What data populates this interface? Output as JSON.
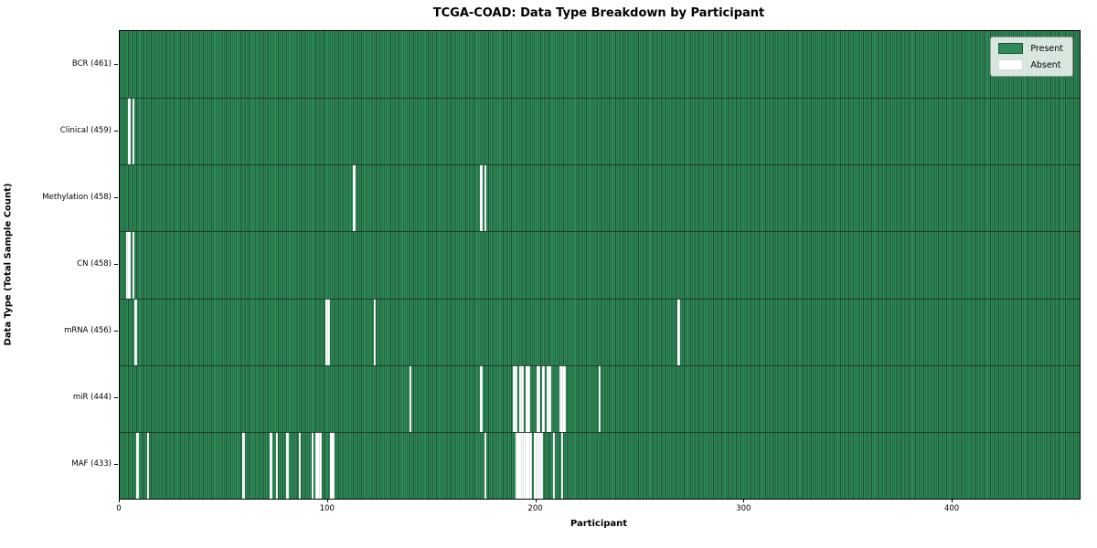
{
  "title": "TCGA-COAD: Data Type Breakdown by Participant",
  "xlabel": "Participant",
  "ylabel": "Data Type (Total Sample Count)",
  "legend": {
    "present_label": "Present",
    "absent_label": "Absent",
    "position": "upper right"
  },
  "colors": {
    "present": "#2e8b57",
    "present_edge": "#1d4f35",
    "absent": "#ffffff",
    "row_separator": "#1c3326",
    "spine": "#000000",
    "legend_bg": "#e8eee8",
    "legend_border": "#8f998f",
    "figure_bg": "#ffffff"
  },
  "chart_data": {
    "type": "heatmap",
    "title": "TCGA-COAD: Data Type Breakdown by Participant",
    "xlabel": "Participant",
    "ylabel": "Data Type (Total Sample Count)",
    "n_participants": 461,
    "xlim": [
      0,
      461
    ],
    "x_ticks": [
      0,
      100,
      200,
      300,
      400
    ],
    "grid": false,
    "legend_entries": [
      "Present",
      "Absent"
    ],
    "legend_position": "upper right",
    "cell_values": "binary: 1 = Present (green), 0 = Absent (white); all participants present unless listed in absent_participants",
    "rows": [
      {
        "label": "BCR (461)",
        "data_type": "BCR",
        "total_sample_count": 461,
        "absent_participants": []
      },
      {
        "label": "Clinical (459)",
        "data_type": "Clinical",
        "total_sample_count": 459,
        "absent_participants": [
          4,
          6
        ]
      },
      {
        "label": "Methylation (458)",
        "data_type": "Methylation",
        "total_sample_count": 458,
        "absent_participants": [
          112,
          173,
          175
        ]
      },
      {
        "label": "CN (458)",
        "data_type": "CN",
        "total_sample_count": 458,
        "absent_participants": [
          3,
          4,
          6
        ]
      },
      {
        "label": "mRNA (456)",
        "data_type": "mRNA",
        "total_sample_count": 456,
        "absent_participants": [
          7,
          99,
          100,
          122,
          268
        ]
      },
      {
        "label": "miR (444)",
        "data_type": "miR",
        "total_sample_count": 444,
        "absent_participants": [
          139,
          173,
          189,
          190,
          192,
          193,
          195,
          196,
          200,
          201,
          203,
          205,
          206,
          211,
          212,
          213,
          230
        ]
      },
      {
        "label": "MAF (433)",
        "data_type": "MAF",
        "total_sample_count": 433,
        "absent_participants": [
          8,
          13,
          59,
          72,
          75,
          80,
          86,
          92,
          94,
          95,
          96,
          101,
          102,
          175,
          190,
          191,
          192,
          193,
          194,
          195,
          196,
          197,
          199,
          200,
          201,
          202,
          208,
          212
        ]
      }
    ]
  }
}
